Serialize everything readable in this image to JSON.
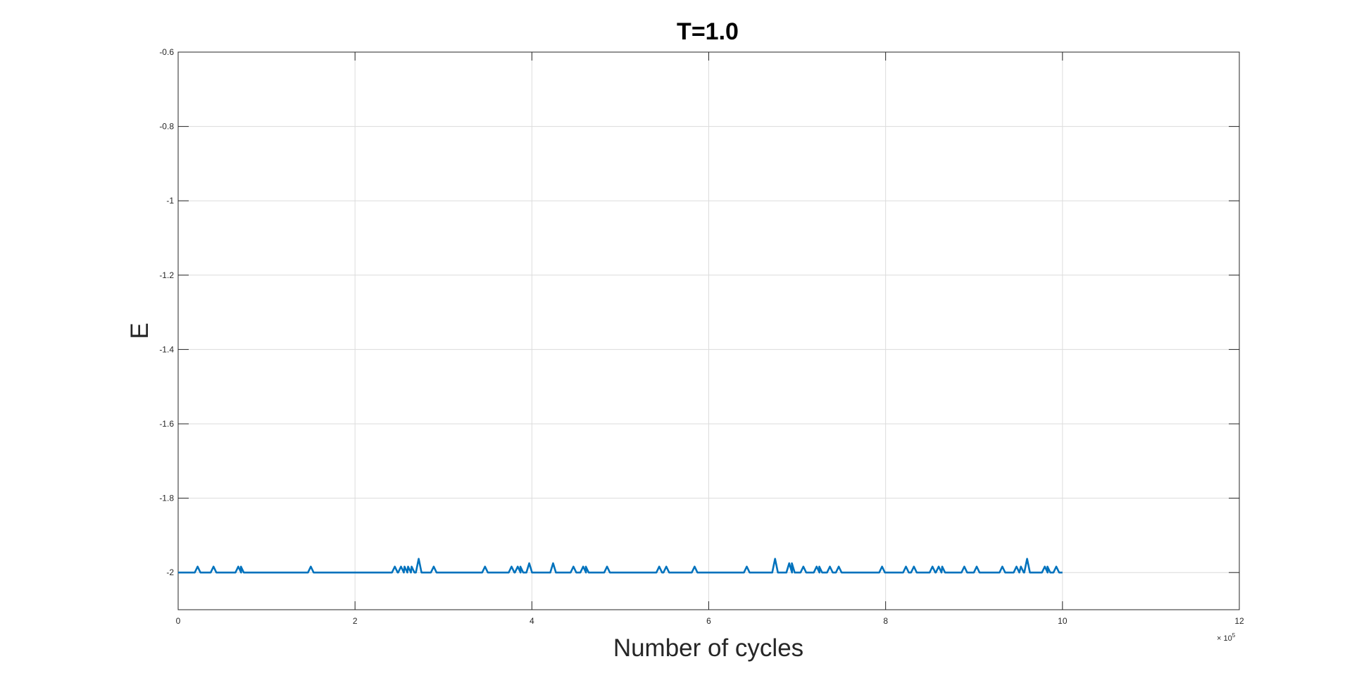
{
  "chart_data": {
    "type": "line",
    "title": "T=1.0",
    "xlabel": "Number of cycles",
    "ylabel": "E",
    "x_exponent_base": "× 10",
    "x_exponent_power": "5",
    "xlim": [
      0,
      12
    ],
    "ylim": [
      -2.1,
      -0.6
    ],
    "xticks": [
      0,
      2,
      4,
      6,
      8,
      10,
      12
    ],
    "xtick_labels": [
      "0",
      "2",
      "4",
      "6",
      "8",
      "10",
      "12"
    ],
    "yticks": [
      -0.6,
      -0.8,
      -1,
      -1.2,
      -1.4,
      -1.6,
      -1.8,
      -2
    ],
    "ytick_labels": [
      "-0.6",
      "-0.8",
      "-1",
      "-1.2",
      "-1.4",
      "-1.6",
      "-1.8",
      "-2"
    ],
    "grid": true,
    "legend": "none",
    "series_color": "#0072BD",
    "baseline": -2,
    "x_range": [
      0,
      10
    ],
    "spikes": [
      {
        "x": 0.22,
        "y": -1.984
      },
      {
        "x": 0.4,
        "y": -1.984
      },
      {
        "x": 0.68,
        "y": -1.984
      },
      {
        "x": 0.71,
        "y": -1.984
      },
      {
        "x": 1.5,
        "y": -1.984
      },
      {
        "x": 2.45,
        "y": -1.984
      },
      {
        "x": 2.52,
        "y": -1.984
      },
      {
        "x": 2.56,
        "y": -1.984
      },
      {
        "x": 2.6,
        "y": -1.984
      },
      {
        "x": 2.64,
        "y": -1.984
      },
      {
        "x": 2.72,
        "y": -1.963
      },
      {
        "x": 2.89,
        "y": -1.984
      },
      {
        "x": 3.47,
        "y": -1.984
      },
      {
        "x": 3.77,
        "y": -1.984
      },
      {
        "x": 3.84,
        "y": -1.984
      },
      {
        "x": 3.87,
        "y": -1.984
      },
      {
        "x": 3.97,
        "y": -1.975
      },
      {
        "x": 4.24,
        "y": -1.975
      },
      {
        "x": 4.47,
        "y": -1.984
      },
      {
        "x": 4.58,
        "y": -1.984
      },
      {
        "x": 4.61,
        "y": -1.984
      },
      {
        "x": 4.85,
        "y": -1.984
      },
      {
        "x": 5.44,
        "y": -1.984
      },
      {
        "x": 5.52,
        "y": -1.984
      },
      {
        "x": 5.84,
        "y": -1.984
      },
      {
        "x": 6.43,
        "y": -1.984
      },
      {
        "x": 6.75,
        "y": -1.963
      },
      {
        "x": 6.91,
        "y": -1.975
      },
      {
        "x": 6.94,
        "y": -1.975
      },
      {
        "x": 7.07,
        "y": -1.984
      },
      {
        "x": 7.22,
        "y": -1.984
      },
      {
        "x": 7.25,
        "y": -1.984
      },
      {
        "x": 7.37,
        "y": -1.984
      },
      {
        "x": 7.47,
        "y": -1.984
      },
      {
        "x": 7.96,
        "y": -1.984
      },
      {
        "x": 8.23,
        "y": -1.984
      },
      {
        "x": 8.32,
        "y": -1.984
      },
      {
        "x": 8.53,
        "y": -1.984
      },
      {
        "x": 8.6,
        "y": -1.984
      },
      {
        "x": 8.64,
        "y": -1.984
      },
      {
        "x": 8.89,
        "y": -1.984
      },
      {
        "x": 9.03,
        "y": -1.984
      },
      {
        "x": 9.32,
        "y": -1.984
      },
      {
        "x": 9.48,
        "y": -1.984
      },
      {
        "x": 9.53,
        "y": -1.984
      },
      {
        "x": 9.6,
        "y": -1.963
      },
      {
        "x": 9.8,
        "y": -1.984
      },
      {
        "x": 9.83,
        "y": -1.984
      },
      {
        "x": 9.93,
        "y": -1.984
      }
    ]
  }
}
